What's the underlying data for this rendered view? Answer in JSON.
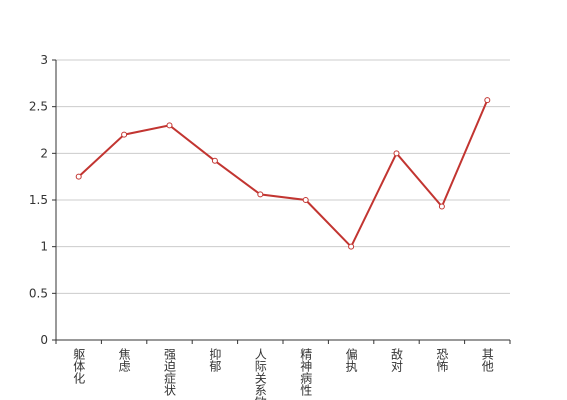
{
  "chart_data": {
    "type": "line",
    "categories": [
      "躯体化",
      "焦虑",
      "强迫症状",
      "抑郁",
      "人际关系敏感",
      "精神病性",
      "偏执",
      "敌对",
      "恐怖",
      "其他"
    ],
    "series": [
      {
        "color": "#c23531",
        "values": [
          1.75,
          2.2,
          2.3,
          1.92,
          1.56,
          1.5,
          1.0,
          2.0,
          1.43,
          2.57
        ]
      }
    ],
    "ylim": [
      0,
      3
    ],
    "yticks": [
      0,
      0.5,
      1,
      1.5,
      2,
      2.5,
      3
    ],
    "grid": true
  }
}
